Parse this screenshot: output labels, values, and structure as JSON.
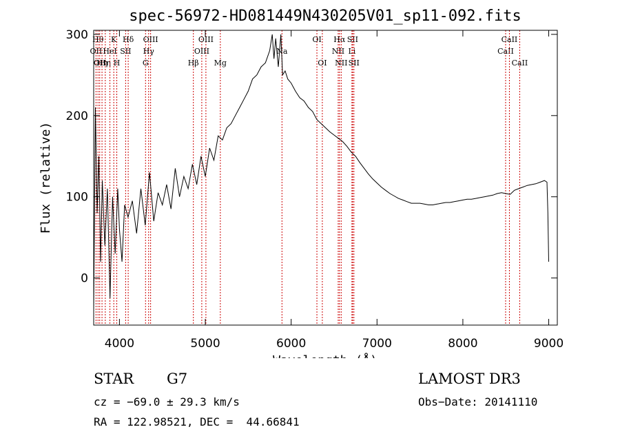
{
  "chart_data": {
    "type": "line",
    "title": "spec-56972-HD081449N430205V01_sp11-092.fits",
    "xlabel": "Wavelength (Å)",
    "ylabel": "Flux (relative)",
    "xlim": [
      3700,
      9100
    ],
    "ylim": [
      -58,
      305
    ],
    "xticks": [
      4000,
      5000,
      6000,
      7000,
      8000,
      9000
    ],
    "yticks": [
      0,
      100,
      200,
      300
    ],
    "grid": false,
    "series": [
      {
        "name": "flux",
        "x": [
          3700,
          3720,
          3740,
          3760,
          3780,
          3800,
          3830,
          3860,
          3890,
          3920,
          3950,
          3980,
          4000,
          4030,
          4060,
          4100,
          4150,
          4200,
          4250,
          4300,
          4350,
          4400,
          4450,
          4500,
          4550,
          4600,
          4650,
          4700,
          4750,
          4800,
          4850,
          4900,
          4950,
          5000,
          5050,
          5100,
          5150,
          5200,
          5250,
          5300,
          5350,
          5400,
          5450,
          5500,
          5550,
          5600,
          5650,
          5700,
          5750,
          5780,
          5800,
          5820,
          5850,
          5880,
          5900,
          5930,
          5960,
          6000,
          6050,
          6100,
          6150,
          6200,
          6250,
          6300,
          6350,
          6400,
          6450,
          6500,
          6550,
          6600,
          6650,
          6700,
          6750,
          6800,
          6850,
          6900,
          6950,
          7000,
          7050,
          7100,
          7150,
          7200,
          7250,
          7300,
          7350,
          7400,
          7450,
          7500,
          7550,
          7600,
          7650,
          7700,
          7750,
          7800,
          7850,
          7900,
          7950,
          8000,
          8050,
          8100,
          8150,
          8200,
          8250,
          8300,
          8350,
          8400,
          8450,
          8500,
          8550,
          8600,
          8650,
          8700,
          8750,
          8800,
          8850,
          8900,
          8950,
          8980,
          8990,
          9000
        ],
        "y": [
          -40,
          210,
          80,
          150,
          20,
          120,
          40,
          110,
          -25,
          100,
          30,
          110,
          60,
          20,
          90,
          75,
          95,
          55,
          110,
          65,
          130,
          70,
          105,
          90,
          115,
          85,
          135,
          100,
          125,
          110,
          140,
          115,
          150,
          125,
          160,
          145,
          175,
          170,
          185,
          190,
          200,
          210,
          220,
          230,
          245,
          250,
          260,
          265,
          280,
          300,
          270,
          295,
          260,
          300,
          250,
          255,
          245,
          240,
          230,
          222,
          218,
          210,
          205,
          195,
          190,
          185,
          180,
          176,
          172,
          168,
          162,
          155,
          150,
          142,
          135,
          128,
          122,
          117,
          112,
          108,
          104,
          101,
          98,
          96,
          94,
          92,
          92,
          92,
          91,
          90,
          90,
          91,
          92,
          93,
          93,
          94,
          95,
          96,
          97,
          97,
          98,
          99,
          100,
          101,
          102,
          104,
          105,
          104,
          103,
          108,
          110,
          112,
          114,
          115,
          116,
          118,
          120,
          118,
          80,
          20
        ]
      }
    ],
    "lines": [
      {
        "x": 3750,
        "labels": [
          "Hθ"
        ],
        "row": 1
      },
      {
        "x": 3727,
        "labels": [
          "OII"
        ],
        "row": 2
      },
      {
        "x": 3770,
        "labels": [
          "OII"
        ],
        "row": 3
      },
      {
        "x": 3797,
        "labels": [
          "Hη"
        ],
        "row": 3
      },
      {
        "x": 3835,
        "labels": [
          "Hη"
        ],
        "row": 3
      },
      {
        "x": 3889,
        "labels": [
          "HeI"
        ],
        "row": 2
      },
      {
        "x": 3934,
        "labels": [
          "K"
        ],
        "row": 1
      },
      {
        "x": 3969,
        "labels": [
          "H"
        ],
        "row": 3
      },
      {
        "x": 4102,
        "labels": [
          "Hδ"
        ],
        "row": 1
      },
      {
        "x": 4072,
        "labels": [
          "SII"
        ],
        "row": 2
      },
      {
        "x": 4304,
        "labels": [
          "G"
        ],
        "row": 3
      },
      {
        "x": 4340,
        "labels": [
          "Hγ"
        ],
        "row": 2
      },
      {
        "x": 4363,
        "labels": [
          "OIII"
        ],
        "row": 1
      },
      {
        "x": 4861,
        "labels": [
          "Hβ"
        ],
        "row": 3
      },
      {
        "x": 4959,
        "labels": [
          "OIII"
        ],
        "row": 2
      },
      {
        "x": 5007,
        "labels": [
          "OIII"
        ],
        "row": 1
      },
      {
        "x": 5175,
        "labels": [
          "Mg"
        ],
        "row": 3
      },
      {
        "x": 5893,
        "labels": [
          "Na"
        ],
        "row": 2
      },
      {
        "x": 6300,
        "labels": [
          "OI"
        ],
        "row": 1
      },
      {
        "x": 6363,
        "labels": [
          "OI"
        ],
        "row": 3
      },
      {
        "x": 6548,
        "labels": [
          "NII"
        ],
        "row": 2
      },
      {
        "x": 6563,
        "labels": [
          "Hα"
        ],
        "row": 1
      },
      {
        "x": 6583,
        "labels": [
          "NII"
        ],
        "row": 3
      },
      {
        "x": 6708,
        "labels": [
          "Li"
        ],
        "row": 2
      },
      {
        "x": 6716,
        "labels": [
          "SII"
        ],
        "row": 1
      },
      {
        "x": 6731,
        "labels": [
          "SII"
        ],
        "row": 3
      },
      {
        "x": 8498,
        "labels": [
          "CaII"
        ],
        "row": 2
      },
      {
        "x": 8542,
        "labels": [
          "CaII"
        ],
        "row": 1
      },
      {
        "x": 8662,
        "labels": [
          "CaII"
        ],
        "row": 3
      }
    ]
  },
  "info": {
    "class_text": "STAR",
    "subclass_text": "G7",
    "survey": "LAMOST DR3",
    "cz": "cz = −69.0 ± 29.3 km/s",
    "obs_date": "Obs−Date: 20141110",
    "coords": "RA = 122.98521, DEC =  44.66841"
  },
  "colors": {
    "line_marker": "#cc0000",
    "spectrum": "#000000"
  }
}
